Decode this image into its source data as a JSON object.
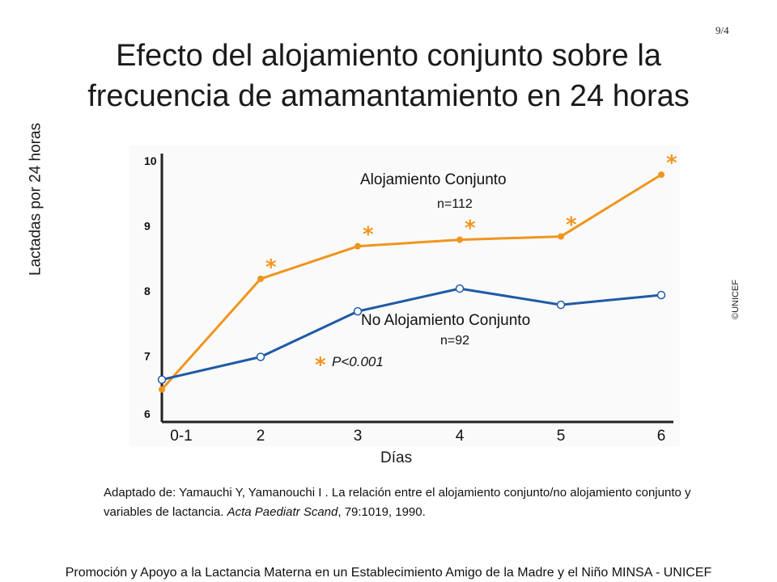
{
  "slide_number": "9/4",
  "title_line1": "Efecto del alojamiento conjunto sobre la",
  "title_line2": "frecuencia de amamantamiento en 24 horas",
  "credit": "©UNICEF",
  "source": {
    "prefix": "Adaptado de: Yamauchi Y, Yamanouchi I .  La relación entre el alojamiento conjunto/no alojamiento conjunto y variables de lactancia. ",
    "journal": "Acta Paediatr Scand",
    "suffix": ", 79:1019, 1990."
  },
  "footer": "Promoción y Apoyo a la Lactancia Materna en un Establecimiento Amigo de la Madre y el Niño  MINSA - UNICEF",
  "chart_data": {
    "type": "line",
    "title": "",
    "xlabel": "Días",
    "ylabel": "Lactadas por 24 horas",
    "categories": [
      "0-1",
      "2",
      "3",
      "4",
      "5",
      "6"
    ],
    "yticks": [
      "6",
      "7",
      "8",
      "9",
      "10"
    ],
    "ylim": [
      6,
      10
    ],
    "grid": false,
    "series": [
      {
        "name": "Alojamiento Conjunto",
        "n_label": "n=112",
        "color": "#f0951e",
        "marker": "filled-circle",
        "values": [
          6.5,
          8.2,
          8.7,
          8.8,
          8.85,
          9.8
        ],
        "significant": [
          false,
          true,
          true,
          true,
          true,
          true
        ]
      },
      {
        "name": "No Alojamiento Conjunto",
        "n_label": "n=92",
        "color": "#1f5aa6",
        "marker": "open-circle",
        "values": [
          6.65,
          7.0,
          7.7,
          8.05,
          7.8,
          7.95
        ],
        "significant": [
          false,
          false,
          false,
          false,
          false,
          false
        ]
      }
    ],
    "significance_legend": {
      "symbol": "*",
      "text": "P<0.001"
    }
  }
}
